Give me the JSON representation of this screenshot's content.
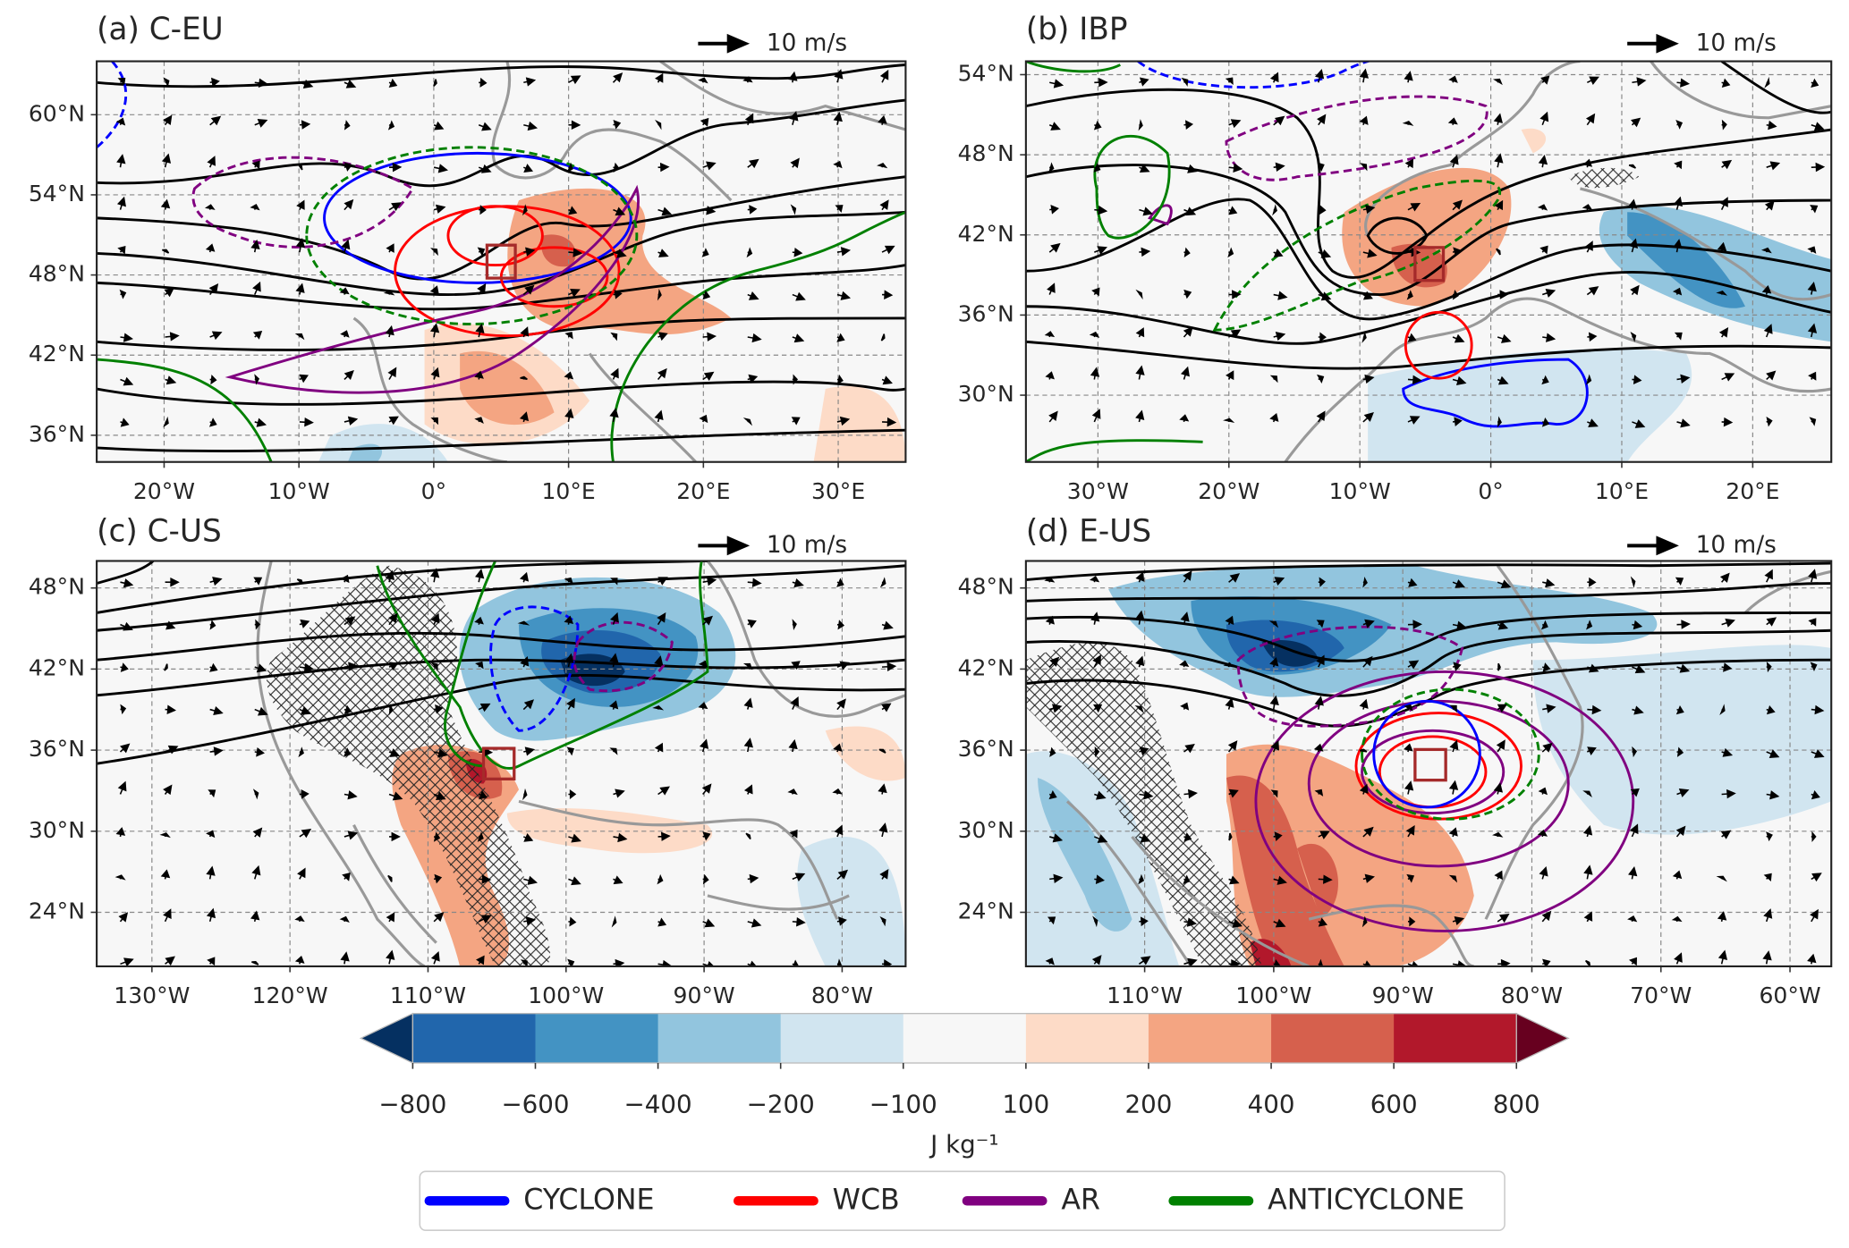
{
  "panels": [
    {
      "title": "(a) C-EU",
      "vector_ref": "10 m/s",
      "xlim": [
        -25,
        35
      ],
      "ylim": [
        34,
        64
      ],
      "xticks": [
        {
          "value": -20,
          "label": "20°W"
        },
        {
          "value": -10,
          "label": "10°W"
        },
        {
          "value": 0,
          "label": "0°"
        },
        {
          "value": 10,
          "label": "10°E"
        },
        {
          "value": 20,
          "label": "20°E"
        },
        {
          "value": 30,
          "label": "30°E"
        }
      ],
      "yticks": [
        {
          "value": 36,
          "label": "36°N"
        },
        {
          "value": 42,
          "label": "42°N"
        },
        {
          "value": 48,
          "label": "48°N"
        },
        {
          "value": 54,
          "label": "54°N"
        },
        {
          "value": 60,
          "label": "60°N"
        }
      ]
    },
    {
      "title": "(b) IBP",
      "vector_ref": "10 m/s",
      "xlim": [
        -35.5,
        26
      ],
      "ylim": [
        25,
        55
      ],
      "xticks": [
        {
          "value": -30,
          "label": "30°W"
        },
        {
          "value": -20,
          "label": "20°W"
        },
        {
          "value": -10,
          "label": "10°W"
        },
        {
          "value": 0,
          "label": "0°"
        },
        {
          "value": 10,
          "label": "10°E"
        },
        {
          "value": 20,
          "label": "20°E"
        }
      ],
      "yticks": [
        {
          "value": 30,
          "label": "30°N"
        },
        {
          "value": 36,
          "label": "36°N"
        },
        {
          "value": 42,
          "label": "42°N"
        },
        {
          "value": 48,
          "label": "48°N"
        },
        {
          "value": 54,
          "label": "54°N"
        }
      ]
    },
    {
      "title": "(c) C-US",
      "vector_ref": "10 m/s",
      "xlim": [
        -134,
        -75.4
      ],
      "ylim": [
        20,
        50
      ],
      "xticks": [
        {
          "value": -130,
          "label": "130°W"
        },
        {
          "value": -120,
          "label": "120°W"
        },
        {
          "value": -110,
          "label": "110°W"
        },
        {
          "value": -100,
          "label": "100°W"
        },
        {
          "value": -90,
          "label": "90°W"
        },
        {
          "value": -80,
          "label": "80°W"
        }
      ],
      "yticks": [
        {
          "value": 24,
          "label": "24°N"
        },
        {
          "value": 30,
          "label": "30°N"
        },
        {
          "value": 36,
          "label": "36°N"
        },
        {
          "value": 42,
          "label": "42°N"
        },
        {
          "value": 48,
          "label": "48°N"
        }
      ]
    },
    {
      "title": "(d) E-US",
      "vector_ref": "10 m/s",
      "xlim": [
        -119.2,
        -56.8
      ],
      "ylim": [
        20,
        50
      ],
      "xticks": [
        {
          "value": -110,
          "label": "110°W"
        },
        {
          "value": -100,
          "label": "100°W"
        },
        {
          "value": -90,
          "label": "90°W"
        },
        {
          "value": -80,
          "label": "80°W"
        },
        {
          "value": -70,
          "label": "70°W"
        },
        {
          "value": -60,
          "label": "60°W"
        }
      ],
      "yticks": [
        {
          "value": 24,
          "label": "24°N"
        },
        {
          "value": 30,
          "label": "30°N"
        },
        {
          "value": 36,
          "label": "36°N"
        },
        {
          "value": 42,
          "label": "42°N"
        },
        {
          "value": 48,
          "label": "48°N"
        }
      ]
    }
  ],
  "colorbar": {
    "ticks": [
      {
        "value": -800,
        "label": "−800"
      },
      {
        "value": -600,
        "label": "−600"
      },
      {
        "value": -400,
        "label": "−400"
      },
      {
        "value": -200,
        "label": "−200"
      },
      {
        "value": -100,
        "label": "−100"
      },
      {
        "value": 100,
        "label": "100"
      },
      {
        "value": 200,
        "label": "200"
      },
      {
        "value": 400,
        "label": "400"
      },
      {
        "value": 600,
        "label": "600"
      },
      {
        "value": 800,
        "label": "800"
      }
    ],
    "colors": [
      "#053061",
      "#2166ac",
      "#4393c3",
      "#92c5de",
      "#d1e5f0",
      "#f7f7f7",
      "#fddbc7",
      "#f4a582",
      "#d6604d",
      "#b2182b",
      "#67001f"
    ],
    "label": "J kg⁻¹"
  },
  "legend": [
    {
      "name": "CYCLONE",
      "color": "#0000ff"
    },
    {
      "name": "WCB",
      "color": "#ff0000"
    },
    {
      "name": "AR",
      "color": "#800080"
    },
    {
      "name": "ANTICYCLONE",
      "color": "#008000"
    }
  ]
}
